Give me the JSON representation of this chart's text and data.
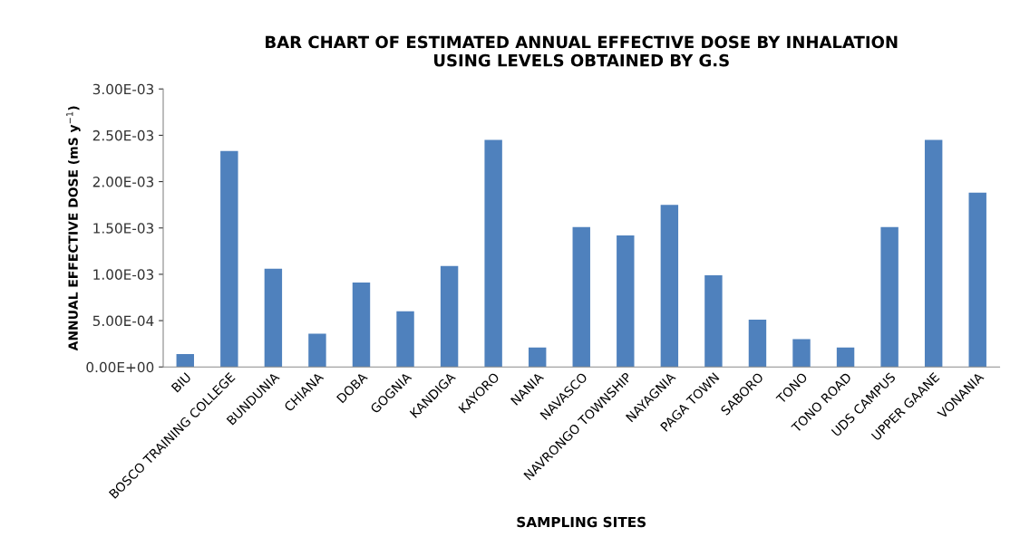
{
  "chart_data": {
    "type": "bar",
    "title": "BAR CHART OF ESTIMATED ANNUAL EFFECTIVE DOSE BY INHALATION\nUSING LEVELS OBTAINED BY G.S",
    "xlabel": "SAMPLING SITES",
    "ylabel": "ANNUAL EFFECTIVE DOSE (mS y$^{−1}$)",
    "categories": [
      "BIU",
      "BOSCO TRAINING COLLEGE",
      "BUNDUNIA",
      "CHIANA",
      "DOBA",
      "GOGNIA",
      "KANDIGA",
      "KAYORO",
      "NANIA",
      "NAVASCO",
      "NAVRONGO TOWNSHIP",
      "NAYAGNIA",
      "PAGA TOWN",
      "SABORO",
      "TONO",
      "TONO ROAD",
      "UDS CAMPUS",
      "UPPER GAANE",
      "VONANIA"
    ],
    "values": [
      0.00014,
      0.00233,
      0.00106,
      0.00036,
      0.00091,
      0.0006,
      0.00109,
      0.00245,
      0.00021,
      0.00151,
      0.00142,
      0.00175,
      0.00099,
      0.00051,
      0.0003,
      0.00021,
      0.00151,
      0.00245,
      0.00188
    ],
    "color": "#4f81bd",
    "ylim": [
      0,
      0.003
    ],
    "yticks": [
      {
        "value": 0,
        "label": "0.00E+00"
      },
      {
        "value": 0.0005,
        "label": "5.00E-04"
      },
      {
        "value": 0.001,
        "label": "1.00E-03"
      },
      {
        "value": 0.0015,
        "label": "1.50E-03"
      },
      {
        "value": 0.002,
        "label": "2.00E-03"
      },
      {
        "value": 0.0025,
        "label": "2.50E-03"
      },
      {
        "value": 0.003,
        "label": "3.00E-03"
      }
    ],
    "grid": false,
    "legend": false
  }
}
